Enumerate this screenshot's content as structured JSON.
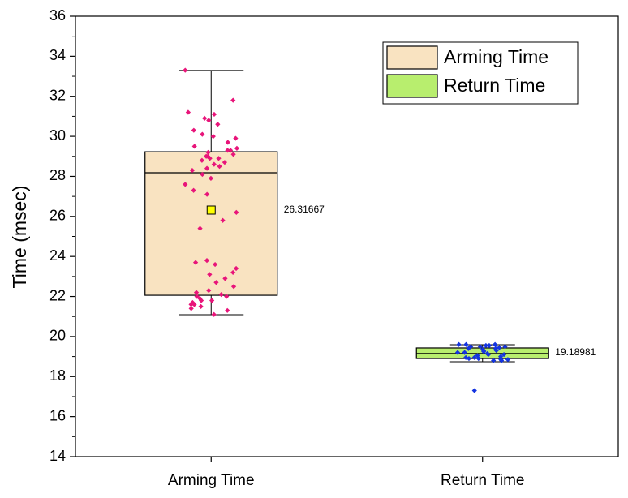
{
  "chart_data": {
    "type": "box",
    "y_label": "Time (msec)",
    "categories": [
      "Arming Time",
      "Return Time"
    ],
    "ylim": [
      14,
      36
    ],
    "yticks": [
      14,
      16,
      18,
      20,
      22,
      24,
      26,
      28,
      30,
      32,
      34,
      36
    ],
    "legend": "top-right",
    "series": [
      {
        "name": "Arming Time",
        "color": "#f9e3c1",
        "point_color": "#e8157a",
        "whisker_low": 21.09,
        "q1": 22.06,
        "median": 28.18,
        "q3": 29.23,
        "whisker_high": 33.29,
        "mean": 26.31667,
        "mean_label": "26.31667",
        "points": [
          33.3,
          31.8,
          31.2,
          31.1,
          30.9,
          30.8,
          30.6,
          30.3,
          30.1,
          30.0,
          29.9,
          29.7,
          29.5,
          29.4,
          29.3,
          29.2,
          29.1,
          29.0,
          28.9,
          28.8,
          28.7,
          28.6,
          28.5,
          28.4,
          28.3,
          28.1,
          27.9,
          27.6,
          27.3,
          27.1,
          26.2,
          25.8,
          25.4,
          23.8,
          23.7,
          23.6,
          23.4,
          23.2,
          23.1,
          22.9,
          22.7,
          22.5,
          22.3,
          22.2,
          22.1,
          22.0,
          21.9,
          21.8,
          21.7,
          21.6,
          21.5,
          21.4,
          21.3,
          21.1,
          29.0,
          29.3,
          28.9,
          22.0,
          21.8,
          21.6
        ]
      },
      {
        "name": "Return Time",
        "color": "#b8ee6e",
        "point_color": "#1434e0",
        "whisker_low": 18.74,
        "q1": 18.9,
        "median": 19.15,
        "q3": 19.43,
        "whisker_high": 19.59,
        "mean": 19.18981,
        "mean_label": "19.18981",
        "points": [
          19.6,
          19.6,
          19.55,
          19.5,
          19.5,
          19.45,
          19.4,
          19.35,
          19.3,
          19.25,
          19.2,
          19.15,
          19.1,
          19.05,
          19.0,
          18.95,
          18.9,
          18.9,
          18.85,
          18.8,
          18.8,
          18.85,
          19.6,
          19.55,
          19.5,
          19.4,
          19.3,
          19.2,
          19.1,
          18.95,
          17.3
        ]
      }
    ]
  }
}
